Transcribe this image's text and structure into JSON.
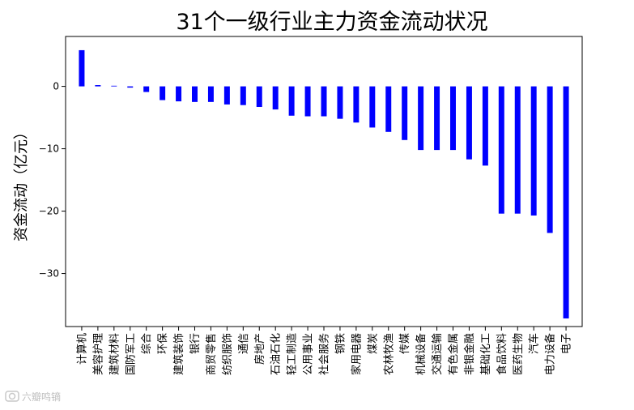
{
  "chart_data": {
    "type": "bar",
    "title": "31个一级行业主力资金流动状况",
    "xlabel": "",
    "ylabel": "资金流动（亿元）",
    "ylim": [
      -38.5,
      8.0
    ],
    "yticks": [
      0,
      -10,
      -20,
      -30
    ],
    "ytick_labels": [
      "0",
      "−10",
      "−20",
      "−30"
    ],
    "grid": false,
    "bar_color": "#0000ff",
    "categories": [
      "计算机",
      "美容护理",
      "建筑材料",
      "国防军工",
      "综合",
      "环保",
      "建筑装饰",
      "银行",
      "商贸零售",
      "纺织服饰",
      "通信",
      "房地产",
      "石油石化",
      "轻工制造",
      "公用事业",
      "社会服务",
      "钢铁",
      "家用电器",
      "煤炭",
      "农林牧渔",
      "传媒",
      "机械设备",
      "交通运输",
      "有色金属",
      "非银金融",
      "基础化工",
      "食品饮料",
      "医药生物",
      "汽车",
      "电力设备",
      "电子"
    ],
    "values": [
      5.8,
      0.2,
      0.1,
      -0.2,
      -0.9,
      -2.2,
      -2.4,
      -2.5,
      -2.5,
      -2.9,
      -3.0,
      -3.3,
      -3.7,
      -4.7,
      -4.8,
      -4.8,
      -5.2,
      -5.8,
      -6.6,
      -7.3,
      -8.6,
      -10.2,
      -10.2,
      -10.2,
      -11.7,
      -12.7,
      -20.4,
      -20.4,
      -20.7,
      -23.5,
      -37.2
    ]
  },
  "watermark": {
    "text": "六瓣鸣镝",
    "icon": "camera-logo-icon"
  }
}
